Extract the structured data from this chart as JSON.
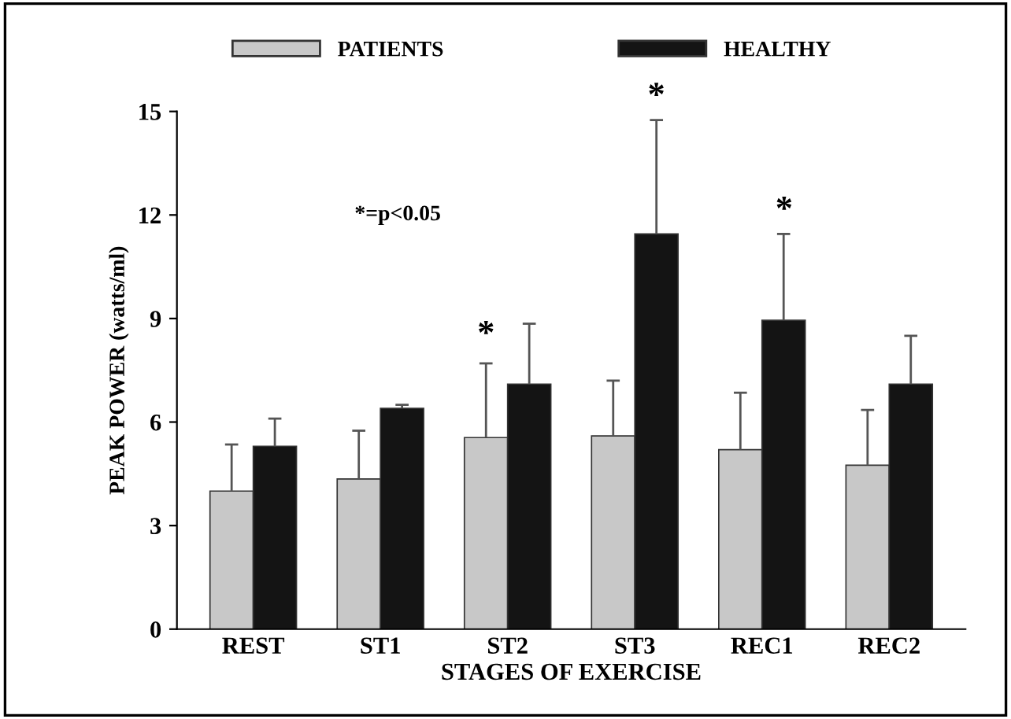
{
  "chart_data": {
    "type": "bar",
    "xlabel": "STAGES OF EXERCISE",
    "ylabel": "PEAK POWER (watts/ml)",
    "categories": [
      "REST",
      "ST1",
      "ST2",
      "ST3",
      "REC1",
      "REC2"
    ],
    "series": [
      {
        "name": "PATIENTS",
        "color": "#c8c8c8",
        "values": [
          4.0,
          4.35,
          5.55,
          5.6,
          5.2,
          4.75
        ],
        "errors": [
          [
            4.0,
            5.35
          ],
          [
            4.35,
            5.75
          ],
          [
            5.55,
            7.7
          ],
          [
            5.6,
            7.2
          ],
          [
            5.2,
            6.85
          ],
          [
            4.75,
            6.35
          ]
        ]
      },
      {
        "name": "HEALTHY",
        "color": "#141414",
        "values": [
          5.3,
          6.4,
          7.1,
          11.45,
          8.95,
          7.1
        ],
        "errors": [
          [
            5.3,
            6.1
          ],
          [
            6.4,
            6.5
          ],
          [
            7.1,
            8.85
          ],
          [
            11.45,
            14.75
          ],
          [
            8.95,
            11.45
          ],
          [
            7.1,
            8.5
          ]
        ]
      }
    ],
    "ylim": [
      0,
      15
    ],
    "yticks": [
      0,
      3,
      6,
      9,
      12,
      15
    ],
    "grid": false,
    "legend": "top",
    "annotations": [
      "*=p<0.05",
      "*",
      "*",
      "*"
    ]
  }
}
